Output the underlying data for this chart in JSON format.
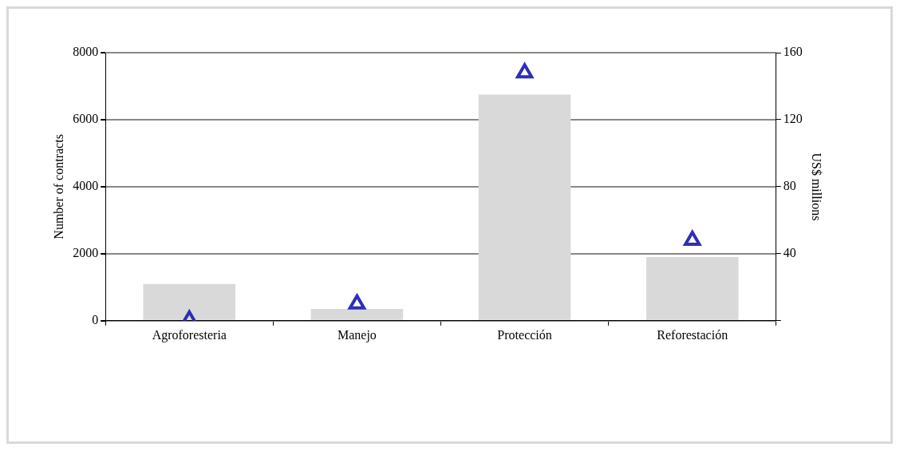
{
  "chart_data": {
    "type": "bar",
    "categories": [
      "Agroforesteria",
      "Manejo",
      "Protección",
      "Reforestación"
    ],
    "series": [
      {
        "color": "#d9d9d9",
        "values": [
          1100,
          350,
          6750,
          1900
        ]
      },
      {
        "type": "scatter",
        "axis": "y2",
        "color": "#2e2eb8",
        "marker": "triangle",
        "values": [
          0.5,
          10,
          148,
          48
        ]
      }
    ],
    "ylabel": "Number of contracts",
    "y2label": "US$ millions",
    "ylim": [
      0,
      8000
    ],
    "yticks": [
      0,
      2000,
      4000,
      6000,
      8000
    ],
    "y2lim": [
      0,
      160
    ],
    "y2ticks": [
      {
        "value": 0,
        "label": null
      },
      40,
      80,
      120,
      160
    ],
    "grid": "y",
    "legend": false
  }
}
